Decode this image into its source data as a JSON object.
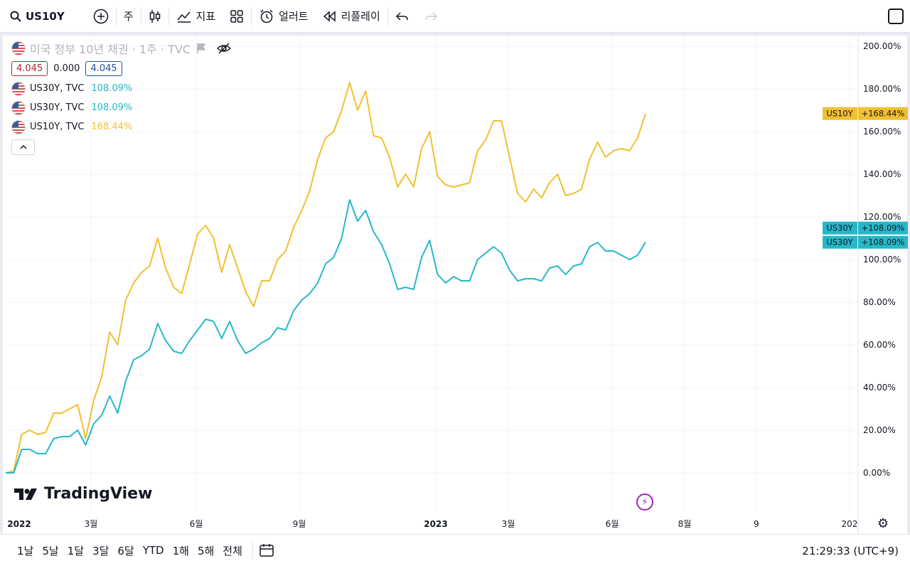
{
  "toolbar": {
    "symbol": "US10Y",
    "interval": "주",
    "indicators_label": "지표",
    "alert_label": "얼러트",
    "replay_label": "리플레이"
  },
  "legend": {
    "title": "미국 정부 10년 채권 · 1주 · TVC",
    "ohlc": [
      "4.045",
      "0.000",
      "4.045"
    ],
    "series": [
      {
        "name": "US30Y, TVC",
        "value": "108.09%",
        "color": "#26b8c8"
      },
      {
        "name": "US30Y, TVC",
        "value": "108.09%",
        "color": "#26b8c8"
      },
      {
        "name": "US10Y, TVC",
        "value": "168.44%",
        "color": "#f0c030"
      }
    ]
  },
  "chart_data": {
    "type": "line",
    "title": "미국 정부 10년 채권 · 1주 · TVC",
    "x_tick_labels": [
      "2022",
      "3월",
      "6월",
      "9월",
      "2023",
      "3월",
      "6월",
      "8월",
      "9",
      "202"
    ],
    "y_tick_labels": [
      "200.00%",
      "180.00%",
      "160.00%",
      "140.00%",
      "120.00%",
      "100.00%",
      "80.00%",
      "60.00%",
      "40.00%",
      "20.00%",
      "0.00%"
    ],
    "ylim": [
      -10,
      205
    ],
    "series": [
      {
        "name": "US10Y",
        "color": "#f0c030",
        "last_label": "US10Y",
        "last_value": "+168.44%",
        "values": [
          0,
          1,
          18,
          20,
          18,
          19,
          28,
          28,
          30,
          32,
          16,
          34,
          45,
          66,
          60,
          81,
          89,
          94,
          97,
          110,
          96,
          87,
          84,
          98,
          112,
          116,
          110,
          94,
          107,
          96,
          85,
          78,
          90,
          90,
          100,
          104,
          115,
          123,
          132,
          147,
          157,
          160,
          170,
          183,
          170,
          179,
          158,
          157,
          148,
          134,
          140,
          134,
          152,
          160,
          139,
          135,
          134,
          135,
          136,
          151,
          156,
          165,
          165,
          148,
          131,
          127,
          133,
          129,
          136,
          140,
          130,
          131,
          133,
          147,
          155,
          148,
          151,
          152,
          151,
          157,
          168.44
        ]
      },
      {
        "name": "US30Y",
        "color": "#26b8c8",
        "last_label": "US30Y",
        "last_value": "+108.09%",
        "values": [
          0,
          0,
          11,
          11,
          9,
          9,
          16,
          17,
          17,
          20,
          13,
          23,
          27,
          36,
          28,
          43,
          53,
          55,
          58,
          70,
          62,
          57,
          56,
          62,
          67,
          72,
          71,
          63,
          71,
          62,
          56,
          58,
          61,
          63,
          68,
          67,
          76,
          81,
          84,
          89,
          98,
          101,
          110,
          128,
          118,
          123,
          113,
          107,
          98,
          86,
          87,
          86,
          101,
          109,
          93,
          89,
          92,
          90,
          90,
          100,
          103,
          106,
          103,
          95,
          90,
          91,
          91,
          90,
          96,
          97,
          93,
          97,
          98,
          106,
          108,
          104,
          104,
          102,
          100,
          102,
          108.09
        ]
      }
    ]
  },
  "watermark": "TradingView",
  "bottom": {
    "ranges": [
      "1날",
      "5날",
      "1달",
      "3달",
      "6달",
      "YTD",
      "1해",
      "5해",
      "전체"
    ],
    "time": "21:29:33 (UTC+9)"
  }
}
